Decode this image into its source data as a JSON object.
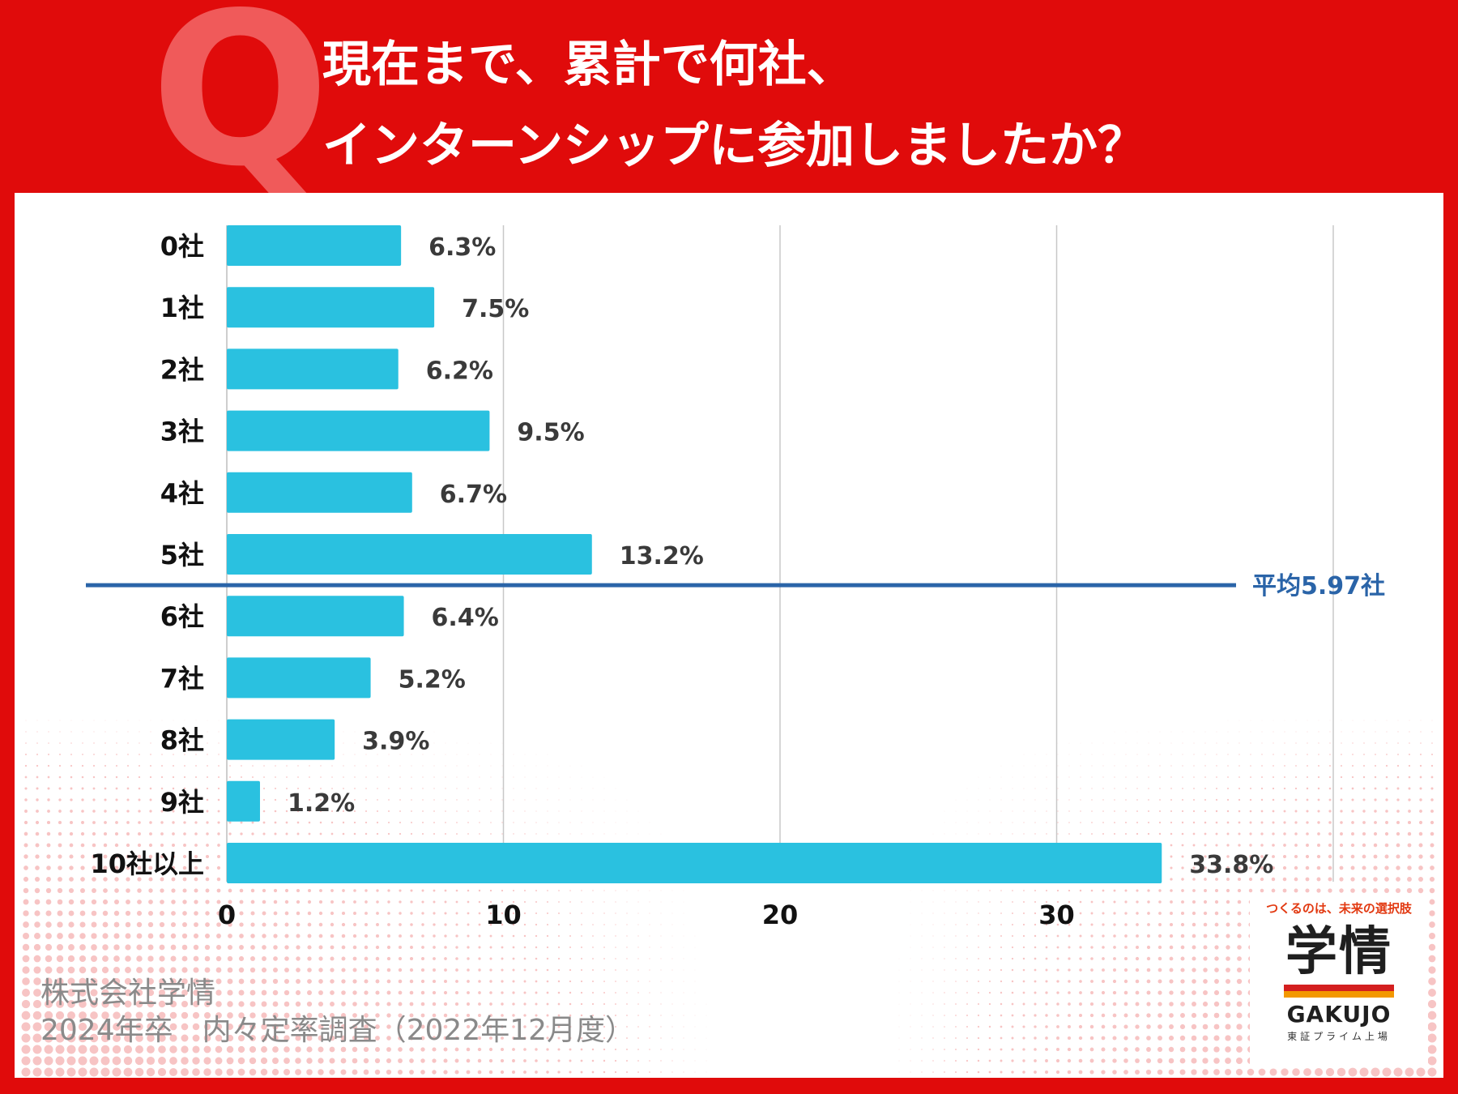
{
  "header": {
    "q_letter": "Q",
    "title_line1": "現在まで、累計で何社、",
    "title_line2": "インターンシップに参加しましたか？"
  },
  "colors": {
    "background": "#e00b0b",
    "bar": "#2ac1e0",
    "average_line": "#2a64a8",
    "q_letter": "#f05a5a"
  },
  "chart_data": {
    "type": "bar",
    "orientation": "horizontal",
    "title": "現在まで、累計で何社、インターンシップに参加しましたか？",
    "categories": [
      "0社",
      "1社",
      "2社",
      "3社",
      "4社",
      "5社",
      "6社",
      "7社",
      "8社",
      "9社",
      "10社以上"
    ],
    "values": [
      6.3,
      7.5,
      6.2,
      9.5,
      6.7,
      13.2,
      6.4,
      5.2,
      3.9,
      1.2,
      33.8
    ],
    "value_labels": [
      "6.3%",
      "7.5%",
      "6.2%",
      "9.5%",
      "6.7%",
      "13.2%",
      "6.4%",
      "5.2%",
      "3.9%",
      "1.2%",
      "33.8%"
    ],
    "xlim": [
      0,
      40
    ],
    "xticks": [
      0,
      10,
      20,
      30
    ],
    "xtick_labels": [
      "0",
      "10",
      "20",
      "30"
    ],
    "grid": true,
    "average": {
      "label": "平均5.97社",
      "value": 5.97,
      "position": "between 5社 and 6社"
    }
  },
  "footer": {
    "company": "株式会社学情",
    "survey": "2024年卒　内々定率調査（2022年12月度）"
  },
  "logo": {
    "tagline": "つくるのは、未来の選択肢",
    "mark": "学情",
    "brand": "GAKUJO",
    "listing": "東証プライム上場"
  }
}
